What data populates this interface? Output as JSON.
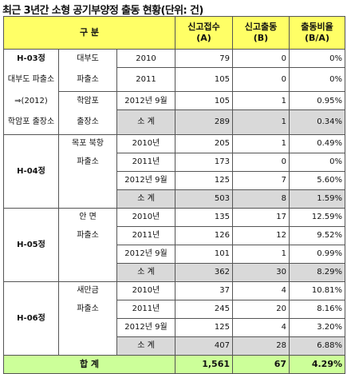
{
  "title": "최근 3년간 소형 공기부양정 출동 현황(단위: 건)",
  "header": {
    "category": "구 분",
    "reports": "신고접수\n(A)",
    "dispatch": "신고출동\n(B)",
    "ratio": "출동비율\n(B/A)"
  },
  "rows": {
    "h03": {
      "craft": "H-03정",
      "craft_note1": "대부도 파출소",
      "craft_note2": "⇒(2012)",
      "craft_note3": "학암포 출장소",
      "station_a": "대부도",
      "station_b": "파출소",
      "station_c": "학암포",
      "station_d": "출장소",
      "r1": {
        "year": "2010",
        "a": "79",
        "b": "0",
        "ratio": "0%"
      },
      "r2": {
        "year": "2011",
        "a": "105",
        "b": "0",
        "ratio": "0%"
      },
      "r3": {
        "year": "2012년 9월",
        "a": "105",
        "b": "1",
        "ratio": "0.95%"
      },
      "sub": {
        "label": "소 계",
        "a": "289",
        "b": "1",
        "ratio": "0.34%"
      }
    },
    "h04": {
      "craft": "H-04정",
      "station_a": "목포 북항",
      "station_b": "파출소",
      "r1": {
        "year": "2010년",
        "a": "205",
        "b": "1",
        "ratio": "0.49%"
      },
      "r2": {
        "year": "2011년",
        "a": "173",
        "b": "0",
        "ratio": "0%"
      },
      "r3": {
        "year": "2012년 9월",
        "a": "125",
        "b": "7",
        "ratio": "5.60%"
      },
      "sub": {
        "label": "소 계",
        "a": "503",
        "b": "8",
        "ratio": "1.59%"
      }
    },
    "h05": {
      "craft": "H-05정",
      "station_a": "안 면",
      "station_b": "파출소",
      "r1": {
        "year": "2010년",
        "a": "135",
        "b": "17",
        "ratio": "12.59%"
      },
      "r2": {
        "year": "2011년",
        "a": "126",
        "b": "12",
        "ratio": "9.52%"
      },
      "r3": {
        "year": "2012년 9월",
        "a": "101",
        "b": "1",
        "ratio": "0.99%"
      },
      "sub": {
        "label": "소 계",
        "a": "362",
        "b": "30",
        "ratio": "8.29%"
      }
    },
    "h06": {
      "craft": "H-06정",
      "station_a": "새만금",
      "station_b": "파출소",
      "r1": {
        "year": "2010년",
        "a": "37",
        "b": "4",
        "ratio": "10.81%"
      },
      "r2": {
        "year": "2011년",
        "a": "245",
        "b": "20",
        "ratio": "8.16%"
      },
      "r3": {
        "year": "2012년 9월",
        "a": "125",
        "b": "4",
        "ratio": "3.20%"
      },
      "sub": {
        "label": "소 계",
        "a": "407",
        "b": "28",
        "ratio": "6.88%"
      }
    }
  },
  "total": {
    "label": "합 계",
    "a": "1,561",
    "b": "67",
    "ratio": "4.29%"
  }
}
